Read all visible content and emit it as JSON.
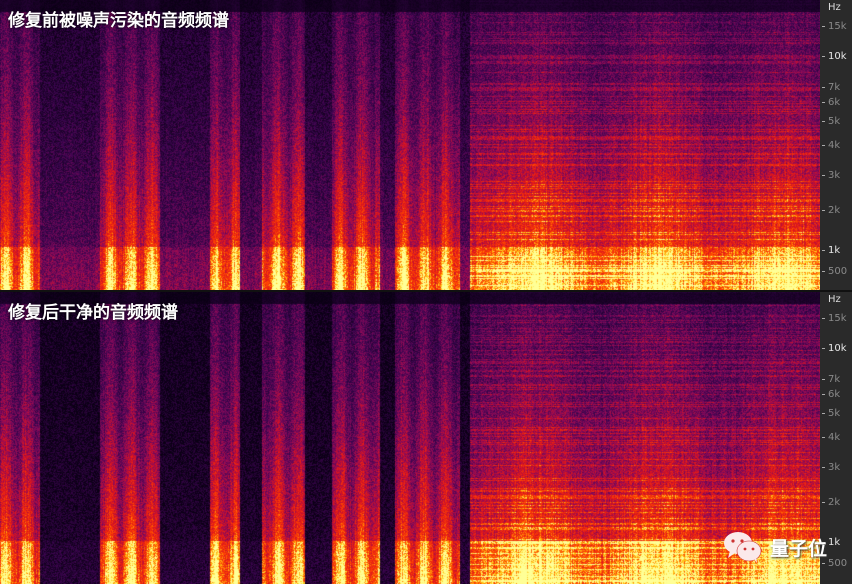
{
  "panels": [
    {
      "title": "修复前被噪声污染的音频频谱",
      "unit": "Hz",
      "ticks": [
        "15k",
        "10k",
        "7k",
        "6k",
        "5k",
        "4k",
        "3k",
        "2k",
        "1k",
        "500"
      ]
    },
    {
      "title": "修复后干净的音频频谱",
      "unit": "Hz",
      "ticks": [
        "15k",
        "10k",
        "7k",
        "6k",
        "5k",
        "4k",
        "3k",
        "2k",
        "1k",
        "500"
      ]
    }
  ],
  "colormap": "inferno/hot",
  "watermark": {
    "text": "量子位",
    "icon": "wechat-icon"
  }
}
